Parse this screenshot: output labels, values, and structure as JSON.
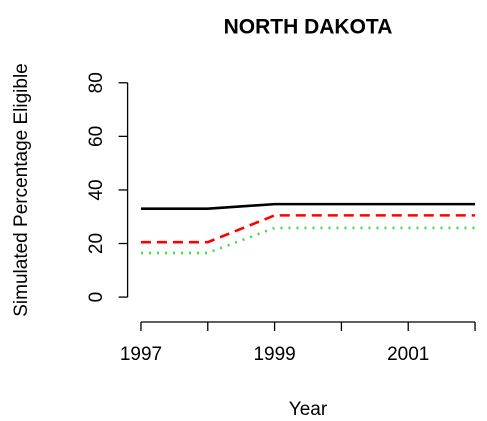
{
  "chart_data": {
    "type": "line",
    "title": "NORTH DAKOTA",
    "xlabel": "Year",
    "ylabel": "Simulated Percentage Eligible",
    "x": [
      1997,
      1998,
      1999,
      2000,
      2001,
      2002
    ],
    "series": [
      {
        "name": null,
        "color": "#000000",
        "dash": "solid",
        "values": [
          33,
          33,
          34.7,
          34.7,
          34.7,
          34.7
        ]
      },
      {
        "name": null,
        "color": "#ff0000",
        "dash": "dashed",
        "values": [
          20.5,
          20.5,
          30.5,
          30.5,
          30.5,
          30.5
        ]
      },
      {
        "name": null,
        "color": "#44dd44",
        "dash": "dotted",
        "values": [
          16.5,
          16.5,
          25.8,
          25.8,
          25.8,
          25.8
        ]
      }
    ],
    "xlim": [
      1996.8,
      2002.2
    ],
    "xticks": [
      1997,
      {
        "value": 1998,
        "label": null
      },
      1999,
      {
        "value": 2000,
        "label": null
      },
      2001,
      {
        "value": 2002,
        "label": null
      }
    ],
    "ylim": [
      -9.3,
      90
    ],
    "yticks": [
      0,
      20,
      40,
      60,
      80
    ],
    "grid": false
  }
}
